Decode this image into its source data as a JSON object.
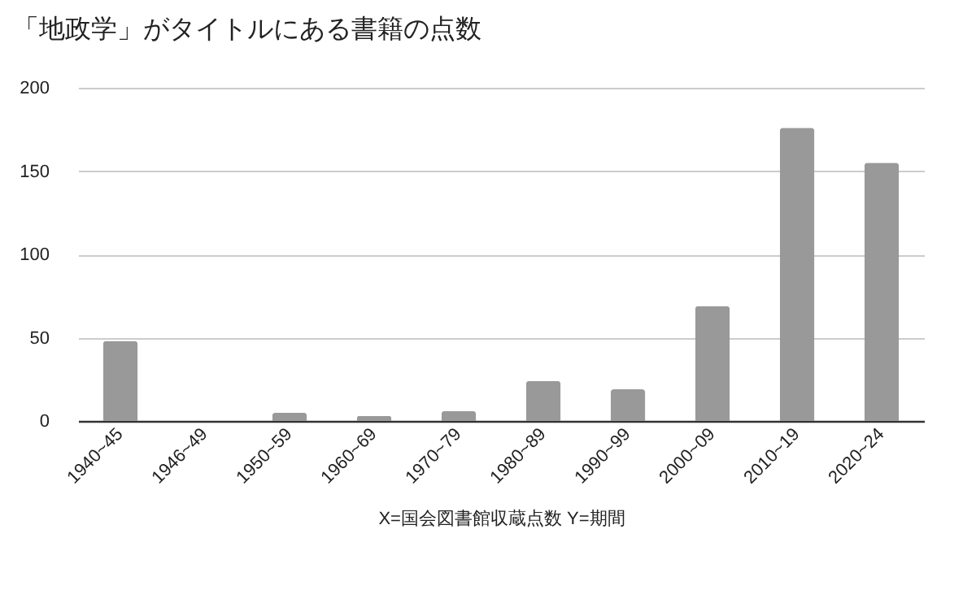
{
  "chart_data": {
    "type": "bar",
    "title": "「地政学」がタイトルにある書籍の点数",
    "xlabel": "X=国会図書館収蔵点数  Y=期間",
    "categories": [
      "1940~45",
      "1946~49",
      "1950~59",
      "1960~69",
      "1970~79",
      "1980~89",
      "1990~99",
      "2000~09",
      "2010~19",
      "2020~24"
    ],
    "values": [
      48,
      0,
      5,
      3,
      6,
      24,
      19,
      69,
      176,
      155
    ],
    "color": "#999999",
    "ylim": [
      0,
      200
    ],
    "yticks": [
      0,
      50,
      100,
      150,
      200
    ],
    "grid": "y"
  }
}
